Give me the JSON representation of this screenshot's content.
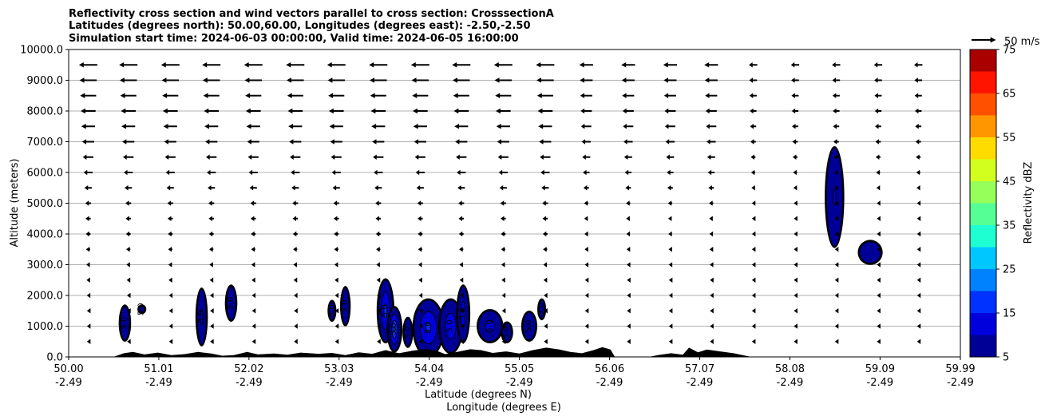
{
  "chart_data": {
    "type": "contour",
    "title_lines": [
      "Reflectivity cross section and wind vectors parallel to cross section: CrosssectionA",
      "Latitudes (degrees north): 50.00,60.00, Longitudes (degrees east): -2.50,-2.50",
      "Simulation start time: 2024-06-03 00:00:00, Valid time: 2024-06-05 16:00:00"
    ],
    "ylabel": "Altitude (meters)",
    "xlabel_lat": "Latitude (degrees N)",
    "xlabel_lon": "Longitude (degrees E)",
    "ylim": [
      0,
      10000
    ],
    "xlim": [
      50.0,
      59.99
    ],
    "y_ticks": [
      "0.0",
      "1000.0",
      "2000.0",
      "3000.0",
      "4000.0",
      "5000.0",
      "6000.0",
      "7000.0",
      "8000.0",
      "9000.0",
      "10000.0"
    ],
    "x_ticks": [
      {
        "lat": "50.00",
        "lon": "-2.49"
      },
      {
        "lat": "51.01",
        "lon": "-2.49"
      },
      {
        "lat": "52.02",
        "lon": "-2.49"
      },
      {
        "lat": "53.03",
        "lon": "-2.49"
      },
      {
        "lat": "54.04",
        "lon": "-2.49"
      },
      {
        "lat": "55.05",
        "lon": "-2.49"
      },
      {
        "lat": "56.06",
        "lon": "-2.49"
      },
      {
        "lat": "57.07",
        "lon": "-2.49"
      },
      {
        "lat": "58.08",
        "lon": "-2.49"
      },
      {
        "lat": "59.09",
        "lon": "-2.49"
      },
      {
        "lat": "59.99",
        "lon": "-2.49"
      }
    ],
    "grid": "horizontal",
    "colorbar": {
      "label": "Reflectivity dBZ",
      "levels": [
        5,
        10,
        15,
        20,
        25,
        30,
        35,
        40,
        45,
        50,
        55,
        60,
        65,
        70,
        75
      ],
      "tick_labels": [
        "5",
        "15",
        "25",
        "35",
        "45",
        "55",
        "65",
        "75"
      ],
      "colors": [
        "#000096",
        "#0000dc",
        "#0032ff",
        "#0082ff",
        "#00c8ff",
        "#1effd2",
        "#55ff96",
        "#96ff5a",
        "#d2ff1e",
        "#ffdc00",
        "#ff9600",
        "#ff5000",
        "#ff1400",
        "#aa0000"
      ]
    },
    "reference_vector": {
      "label": "50 m/s",
      "speed": 50
    },
    "wind_vector_rows": [
      500,
      1000,
      1500,
      2000,
      2500,
      3000,
      3500,
      4000,
      4500,
      5000,
      5500,
      6000,
      6500,
      7000,
      7500,
      8000,
      8500,
      9000,
      9500
    ],
    "wind_vector_columns": [
      50.2,
      50.65,
      51.12,
      51.58,
      52.05,
      52.52,
      52.98,
      53.45,
      53.92,
      54.38,
      54.85,
      55.32,
      55.78,
      56.25,
      56.72,
      57.18,
      57.65,
      58.12,
      58.58,
      59.05,
      59.5
    ],
    "contour_label_text": "5.0",
    "reflectivity_cells": [
      {
        "lat": 50.63,
        "alt": 1100,
        "half_width_deg": 0.05,
        "half_height_m": 550,
        "max_dbz": 10
      },
      {
        "lat": 50.82,
        "alt": 1550,
        "half_width_deg": 0.03,
        "half_height_m": 100,
        "max_dbz": 8
      },
      {
        "lat": 51.49,
        "alt": 1300,
        "half_width_deg": 0.05,
        "half_height_m": 900,
        "max_dbz": 12
      },
      {
        "lat": 51.82,
        "alt": 1750,
        "half_width_deg": 0.05,
        "half_height_m": 550,
        "max_dbz": 10
      },
      {
        "lat": 52.95,
        "alt": 1500,
        "half_width_deg": 0.03,
        "half_height_m": 300,
        "max_dbz": 9
      },
      {
        "lat": 53.1,
        "alt": 1650,
        "half_width_deg": 0.04,
        "half_height_m": 600,
        "max_dbz": 10
      },
      {
        "lat": 53.55,
        "alt": 1500,
        "half_width_deg": 0.08,
        "half_height_m": 1000,
        "max_dbz": 18
      },
      {
        "lat": 53.65,
        "alt": 900,
        "half_width_deg": 0.07,
        "half_height_m": 700,
        "max_dbz": 22
      },
      {
        "lat": 53.8,
        "alt": 800,
        "half_width_deg": 0.04,
        "half_height_m": 450,
        "max_dbz": 10
      },
      {
        "lat": 54.03,
        "alt": 950,
        "half_width_deg": 0.16,
        "half_height_m": 900,
        "max_dbz": 17
      },
      {
        "lat": 54.28,
        "alt": 1000,
        "half_width_deg": 0.12,
        "half_height_m": 850,
        "max_dbz": 15
      },
      {
        "lat": 54.42,
        "alt": 1400,
        "half_width_deg": 0.06,
        "half_height_m": 900,
        "max_dbz": 14
      },
      {
        "lat": 54.72,
        "alt": 1000,
        "half_width_deg": 0.13,
        "half_height_m": 500,
        "max_dbz": 13
      },
      {
        "lat": 54.91,
        "alt": 800,
        "half_width_deg": 0.05,
        "half_height_m": 300,
        "max_dbz": 9
      },
      {
        "lat": 55.16,
        "alt": 1000,
        "half_width_deg": 0.07,
        "half_height_m": 450,
        "max_dbz": 11
      },
      {
        "lat": 55.3,
        "alt": 1550,
        "half_width_deg": 0.03,
        "half_height_m": 300,
        "max_dbz": 8
      },
      {
        "lat": 58.58,
        "alt": 5200,
        "half_width_deg": 0.09,
        "half_height_m": 1600,
        "max_dbz": 11
      },
      {
        "lat": 58.98,
        "alt": 3400,
        "half_width_deg": 0.12,
        "half_height_m": 350,
        "max_dbz": 10
      }
    ],
    "terrain": [
      [
        50.0,
        0
      ],
      [
        50.5,
        0
      ],
      [
        50.62,
        120
      ],
      [
        50.72,
        160
      ],
      [
        50.85,
        80
      ],
      [
        51.0,
        140
      ],
      [
        51.15,
        60
      ],
      [
        51.3,
        90
      ],
      [
        51.45,
        160
      ],
      [
        51.6,
        110
      ],
      [
        51.72,
        40
      ],
      [
        51.85,
        60
      ],
      [
        52.0,
        160
      ],
      [
        52.12,
        80
      ],
      [
        52.3,
        110
      ],
      [
        52.45,
        70
      ],
      [
        52.6,
        140
      ],
      [
        52.8,
        100
      ],
      [
        52.95,
        130
      ],
      [
        53.1,
        60
      ],
      [
        53.25,
        150
      ],
      [
        53.4,
        100
      ],
      [
        53.55,
        220
      ],
      [
        53.7,
        120
      ],
      [
        53.85,
        200
      ],
      [
        54.0,
        260
      ],
      [
        54.12,
        200
      ],
      [
        54.22,
        90
      ],
      [
        54.35,
        160
      ],
      [
        54.5,
        250
      ],
      [
        54.62,
        220
      ],
      [
        54.75,
        130
      ],
      [
        54.9,
        180
      ],
      [
        55.05,
        110
      ],
      [
        55.2,
        220
      ],
      [
        55.35,
        300
      ],
      [
        55.5,
        240
      ],
      [
        55.62,
        160
      ],
      [
        55.75,
        120
      ],
      [
        55.88,
        220
      ],
      [
        55.98,
        320
      ],
      [
        56.07,
        240
      ],
      [
        56.12,
        0
      ],
      [
        56.5,
        0
      ],
      [
        56.6,
        60
      ],
      [
        56.75,
        120
      ],
      [
        56.88,
        70
      ],
      [
        56.95,
        300
      ],
      [
        57.05,
        150
      ],
      [
        57.15,
        240
      ],
      [
        57.3,
        180
      ],
      [
        57.45,
        120
      ],
      [
        57.55,
        60
      ],
      [
        57.65,
        0
      ],
      [
        59.99,
        0
      ]
    ]
  }
}
